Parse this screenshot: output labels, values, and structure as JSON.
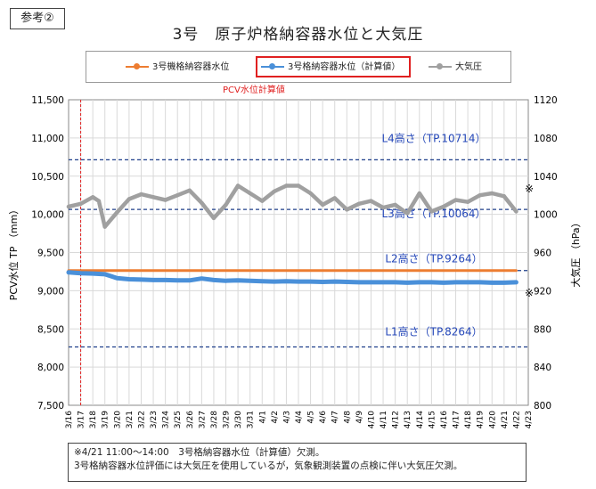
{
  "ref_tag": "参考②",
  "legend_note": "PCV水位計算値",
  "footnote": {
    "line1": "※4/21 11:00～14:00　3号格納容器水位（計算値）欠測。",
    "line2": "3号格納容器水位評価には大気圧を使用しているが，気象観測装置の点検に伴い大気圧欠測。"
  },
  "chart_data": {
    "type": "line",
    "title": "3号　原子炉格納容器水位と大気圧",
    "ylabel": "PCV水位 TP （mm）",
    "y2label": "大気圧 （hPa）",
    "ylim": [
      7500,
      11500
    ],
    "y2lim": [
      800,
      1120
    ],
    "yticks": [
      "7,500",
      "8,000",
      "8,500",
      "9,000",
      "9,500",
      "10,000",
      "10,500",
      "11,000",
      "11,500"
    ],
    "y2ticks": [
      "800",
      "840",
      "880",
      "920",
      "960",
      "1000",
      "1040",
      "1080",
      "1120"
    ],
    "x_tick_labels": [
      "3/16",
      "3/17",
      "3/18",
      "3/19",
      "3/20",
      "3/21",
      "3/22",
      "3/23",
      "3/24",
      "3/25",
      "3/26",
      "3/27",
      "3/28",
      "3/29",
      "3/30",
      "3/31",
      "4/1",
      "4/2",
      "4/3",
      "4/4",
      "4/5",
      "4/6",
      "4/7",
      "4/8",
      "4/9",
      "4/10",
      "4/11",
      "4/12",
      "4/13",
      "4/14",
      "4/15",
      "4/16",
      "4/17",
      "4/18",
      "4/19",
      "4/20",
      "4/21",
      "4/22",
      "4/23"
    ],
    "x_range": [
      "3/16",
      "4/23"
    ],
    "vline": "3/17",
    "grid": true,
    "legend_position": "top",
    "reference_lines": [
      {
        "label": "L4高さ（TP.10714）",
        "value": 10714
      },
      {
        "label": "L3高さ（TP.10064）",
        "value": 10064
      },
      {
        "label": "L2高さ（TP.9264）",
        "value": 9264
      },
      {
        "label": "L1高さ（TP.8264）",
        "value": 8264
      }
    ],
    "markers": [
      "※",
      "※"
    ],
    "series": [
      {
        "name": "3号機格納容器水位",
        "axis": "left",
        "color": "#ed7d31",
        "x": [
          "3/16",
          "4/22"
        ],
        "values": [
          9264,
          9264
        ]
      },
      {
        "name": "3号格納容器水位（計算値）",
        "axis": "left",
        "color": "#4a90d9",
        "x": [
          "3/16",
          "3/17",
          "3/18",
          "3/19",
          "3/20",
          "3/21",
          "3/22",
          "3/23",
          "3/24",
          "3/25",
          "3/26",
          "3/27",
          "3/28",
          "3/29",
          "3/30",
          "3/31",
          "4/1",
          "4/2",
          "4/3",
          "4/4",
          "4/5",
          "4/6",
          "4/7",
          "4/8",
          "4/9",
          "4/10",
          "4/11",
          "4/12",
          "4/13",
          "4/14",
          "4/15",
          "4/16",
          "4/17",
          "4/18",
          "4/19",
          "4/20",
          "4/21",
          "4/22"
        ],
        "values": [
          9240,
          9230,
          9225,
          9215,
          9165,
          9150,
          9145,
          9140,
          9140,
          9135,
          9135,
          9160,
          9140,
          9130,
          9135,
          9130,
          9125,
          9120,
          9125,
          9120,
          9120,
          9115,
          9120,
          9115,
          9110,
          9110,
          9110,
          9110,
          9105,
          9110,
          9110,
          9105,
          9110,
          9110,
          9110,
          9105,
          9105,
          9110
        ]
      },
      {
        "name": "大気圧",
        "axis": "right",
        "color": "#a0a0a0",
        "x": [
          "3/16",
          "3/17",
          "3/18",
          "3/18.5",
          "3/19",
          "3/20",
          "3/21",
          "3/22",
          "3/23",
          "3/24",
          "3/25",
          "3/26",
          "3/27",
          "3/28",
          "3/29",
          "3/30",
          "3/31",
          "4/1",
          "4/2",
          "4/3",
          "4/4",
          "4/5",
          "4/6",
          "4/7",
          "4/8",
          "4/9",
          "4/10",
          "4/11",
          "4/12",
          "4/13",
          "4/14",
          "4/15",
          "4/16",
          "4/17",
          "4/18",
          "4/19",
          "4/20",
          "4/21",
          "4/22"
        ],
        "values": [
          1008,
          1011,
          1018,
          1014,
          987,
          1002,
          1016,
          1021,
          1018,
          1015,
          1020,
          1025,
          1012,
          996,
          1010,
          1030,
          1022,
          1014,
          1024,
          1030,
          1030,
          1022,
          1010,
          1017,
          1005,
          1011,
          1014,
          1007,
          1010,
          1001,
          1022,
          1003,
          1008,
          1015,
          1013,
          1020,
          1022,
          1019,
          1003
        ]
      }
    ]
  }
}
